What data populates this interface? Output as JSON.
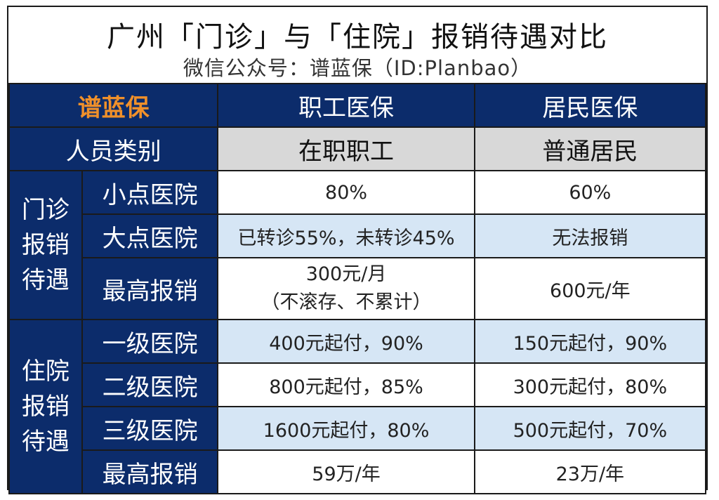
{
  "header": {
    "title": "广州「门诊」与「住院」报销待遇对比",
    "subtitle": "微信公众号：谱蓝保（ID:Planbao）"
  },
  "table": {
    "brand": "谱蓝保",
    "columns": [
      "职工医保",
      "居民医保"
    ],
    "category_label": "人员类别",
    "categories": [
      "在职职工",
      "普通居民"
    ],
    "outpatient": {
      "group_label_lines": [
        "门诊",
        "报销",
        "待遇"
      ],
      "rows": [
        {
          "label": "小点医院",
          "employee": "80%",
          "resident": "60%"
        },
        {
          "label": "大点医院",
          "employee": "已转诊55%，未转诊45%",
          "resident": "无法报销"
        },
        {
          "label": "最高报销",
          "employee_lines": [
            "300元/月",
            "（不滚存、不累计）"
          ],
          "resident": "600元/年"
        }
      ]
    },
    "inpatient": {
      "group_label_lines": [
        "住院",
        "报销",
        "待遇"
      ],
      "rows": [
        {
          "label": "一级医院",
          "employee": "400元起付，90%",
          "resident": "150元起付，90%"
        },
        {
          "label": "二级医院",
          "employee": "800元起付，85%",
          "resident": "300元起付，80%"
        },
        {
          "label": "三级医院",
          "employee": "1600元起付，80%",
          "resident": "500元起付，70%"
        },
        {
          "label": "最高报销",
          "employee": "59万/年",
          "resident": "23万/年"
        }
      ]
    }
  },
  "colors": {
    "navy": "#0c2c6b",
    "brand_orange": "#f0902a",
    "gray_cell": "#d8d8d8",
    "light_blue_cell": "#d6e6f5"
  }
}
